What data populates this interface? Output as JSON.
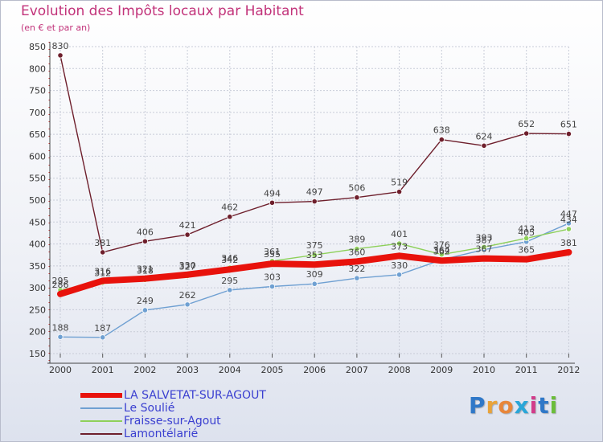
{
  "header": {
    "title": "Evolution des Impôts locaux par Habitant",
    "subtitle": "(en € et par an)"
  },
  "branding": {
    "logo_letters": [
      "P",
      "r",
      "o",
      "x",
      "i",
      "t",
      "i"
    ],
    "logo_colors": [
      "#2f78c8",
      "#e9a33a",
      "#e8863a",
      "#2aa6d8",
      "#d23b8a",
      "#2f78c8",
      "#6bbd3a"
    ]
  },
  "chart_data": {
    "type": "line",
    "title": "Evolution des Impôts locaux par Habitant",
    "ylabel": "(en € et par an)",
    "xlabel": "",
    "x": [
      "2000",
      "2001",
      "2002",
      "2003",
      "2004",
      "2005",
      "2006",
      "2007",
      "2008",
      "2009",
      "2010",
      "2011",
      "2012"
    ],
    "ylim": [
      150,
      850
    ],
    "yticks": [
      150,
      200,
      250,
      300,
      350,
      400,
      450,
      500,
      550,
      600,
      650,
      700,
      750,
      800,
      850
    ],
    "grid": true,
    "legend_position": "bottom-left",
    "series": [
      {
        "name": "LA SALVETAT-SUR-AGOUT",
        "color": "#e8120c",
        "values": [
          286,
          316,
          321,
          330,
          342,
          355,
          353,
          360,
          373,
          362,
          367,
          365,
          381
        ]
      },
      {
        "name": "Le Soulié",
        "color": "#6fa0d2",
        "values": [
          188,
          187,
          249,
          262,
          295,
          303,
          309,
          322,
          330,
          364,
          387,
          405,
          447
        ]
      },
      {
        "name": "Fraisse-sur-Agout",
        "color": "#8ed05a",
        "values": [
          295,
          312,
          318,
          327,
          346,
          361,
          375,
          389,
          401,
          376,
          393,
          413,
          434
        ]
      },
      {
        "name": "Lamontélarié",
        "color": "#6e1f2c",
        "values": [
          830,
          381,
          406,
          421,
          462,
          494,
          497,
          506,
          519,
          638,
          624,
          652,
          651
        ]
      }
    ]
  }
}
